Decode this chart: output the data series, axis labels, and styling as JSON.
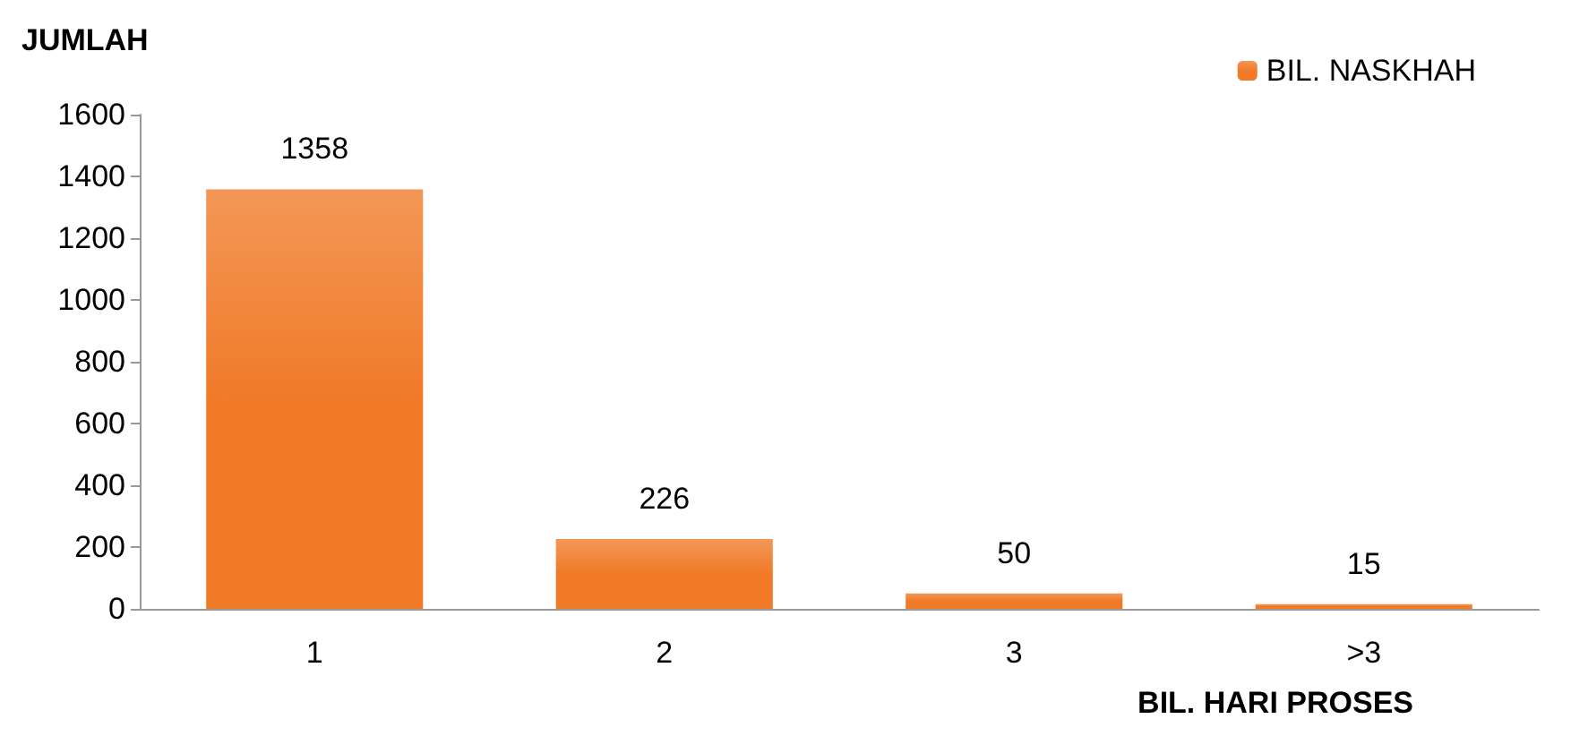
{
  "chart_data": {
    "type": "bar",
    "xlabel": "BIL. HARI PROSES",
    "ylabel": "JUMLAH",
    "categories": [
      "1",
      "2",
      "3",
      ">3"
    ],
    "series": [
      {
        "name": "BIL. NASKHAH",
        "color": "#f07a28",
        "values": [
          1358,
          226,
          50,
          15
        ]
      }
    ],
    "ylim": [
      0,
      1600
    ],
    "yticks": [
      0,
      200,
      400,
      600,
      800,
      1000,
      1200,
      1400,
      1600
    ],
    "data_labels": true,
    "grid": false,
    "legend": "top right"
  }
}
